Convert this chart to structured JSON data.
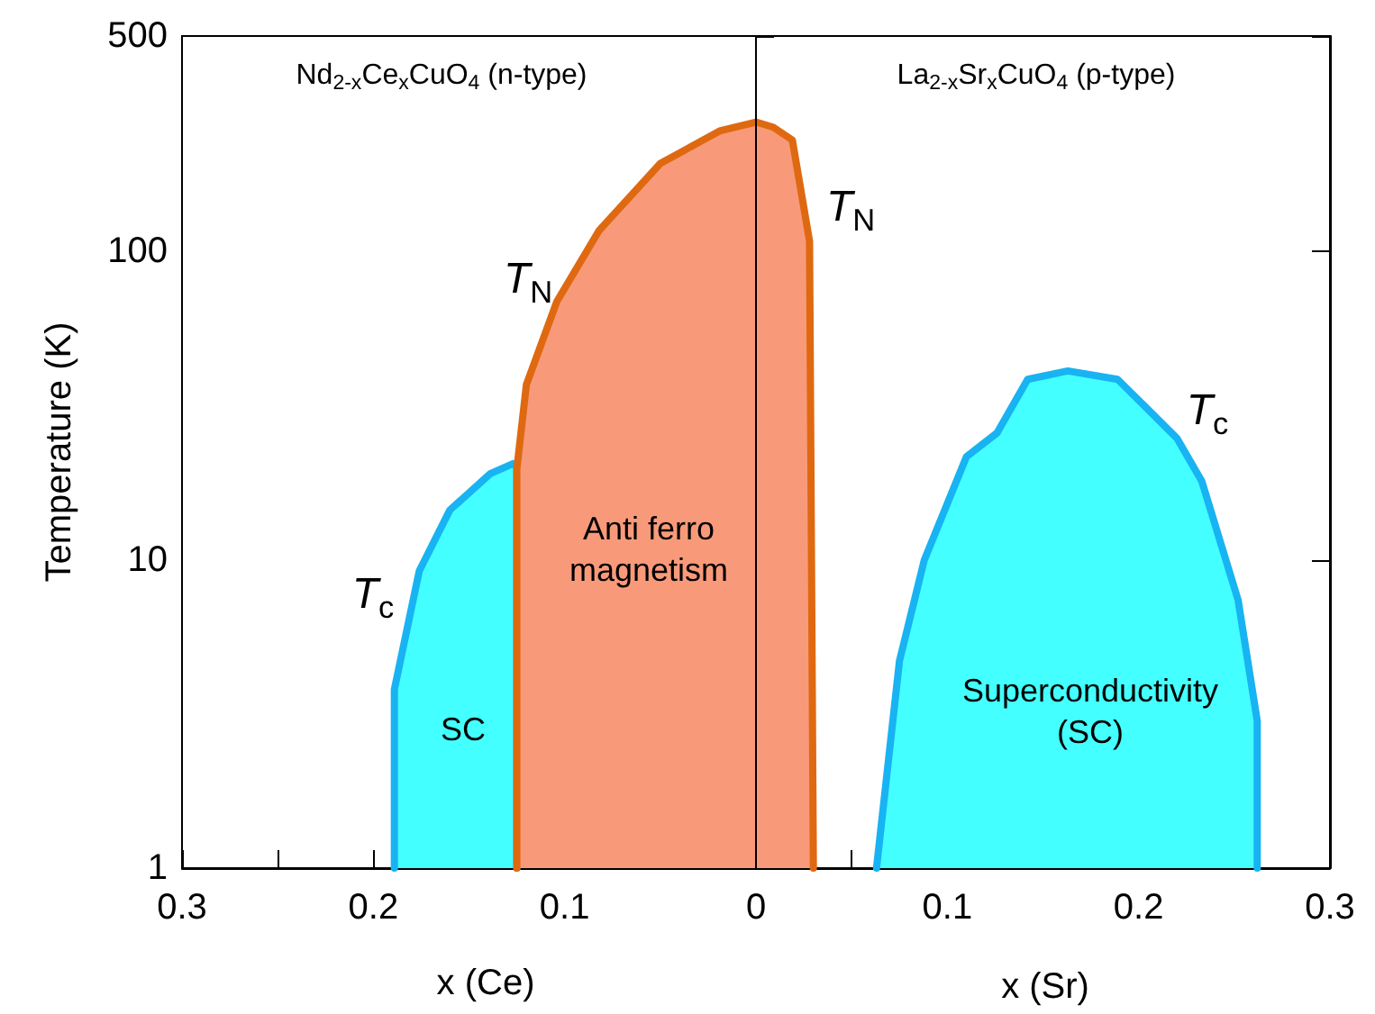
{
  "chart_data": {
    "type": "area",
    "ylabel": "Temperature (K)",
    "xlabel": "x (Ce)",
    "log": "y",
    "grid": false,
    "xlim": [
      -0.3,
      0.3
    ],
    "ylim": [
      1,
      500
    ],
    "xticks": [
      {
        "value": -0.3,
        "label": "0.3"
      },
      {
        "value": -0.25,
        "label": null
      },
      {
        "value": -0.2,
        "label": "0.2"
      },
      {
        "value": -0.15,
        "label": null
      },
      {
        "value": -0.1,
        "label": "0.1"
      },
      {
        "value": -0.05,
        "label": null
      },
      0,
      {
        "value": 0.05,
        "label": null
      },
      0.1,
      {
        "value": 0.15,
        "label": null
      },
      0.2,
      {
        "value": 0.25,
        "label": null
      },
      0.3
    ],
    "yticks": [
      1,
      10,
      100,
      500
    ],
    "ref_lines": [
      {
        "axis": "x",
        "value": 0,
        "color": "#000000"
      }
    ],
    "series": [
      {
        "color": "#44ffff",
        "x": [
          -0.189,
          -0.189,
          -0.176,
          -0.16,
          -0.139,
          -0.127,
          -0.125,
          -0.125
        ],
        "values": [
          1,
          3.8,
          9.2,
          14.5,
          19,
          20.5,
          20,
          1
        ]
      },
      {
        "color": "#f89a7a",
        "x": [
          -0.125,
          -0.125,
          -0.12,
          -0.104,
          -0.082,
          -0.05,
          -0.019,
          0,
          0.009,
          0.019,
          0.028,
          0.03
        ],
        "values": [
          1,
          19.7,
          37,
          69,
          117,
          193,
          246,
          263,
          253,
          230,
          108,
          1
        ]
      },
      {
        "color": "#44ffff",
        "x": [
          0.063,
          0.075,
          0.088,
          0.11,
          0.126,
          0.142,
          0.163,
          0.189,
          0.22,
          0.233,
          0.252,
          0.262,
          0.262
        ],
        "values": [
          1,
          4.7,
          10,
          21.6,
          25.8,
          38.5,
          41,
          38.5,
          24.8,
          18,
          7.4,
          3,
          1
        ]
      }
    ],
    "annotations": [
      "Nd$_{2-x}$Ce$_{x}$CuO$_{4}$ (n-type)",
      "La$_{2-x}$Sr$_{x}$CuO$_{4}$ (p-type)",
      "T$_{N}$",
      "T$_{N}$",
      "T$_{c}$",
      "T$_{c}$",
      "SC",
      "Anti ferro\nmagnetism",
      "Superconductivity\n(SC)",
      "x (Sr)"
    ]
  }
}
